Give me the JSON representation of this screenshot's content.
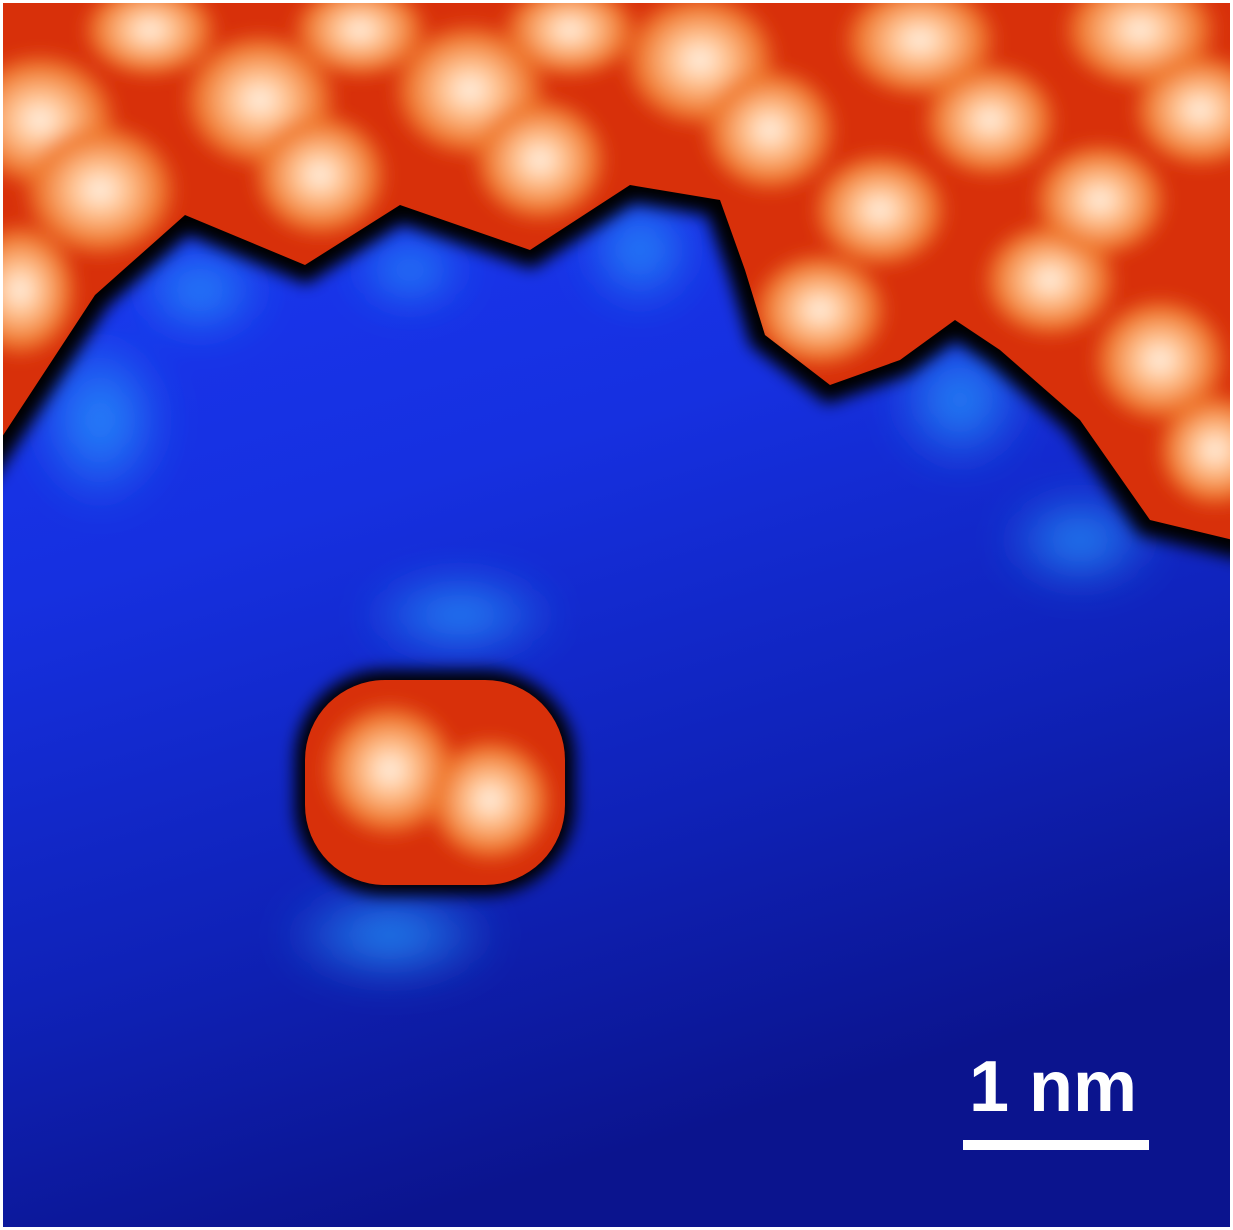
{
  "scale_bar": {
    "label": "1 nm"
  }
}
